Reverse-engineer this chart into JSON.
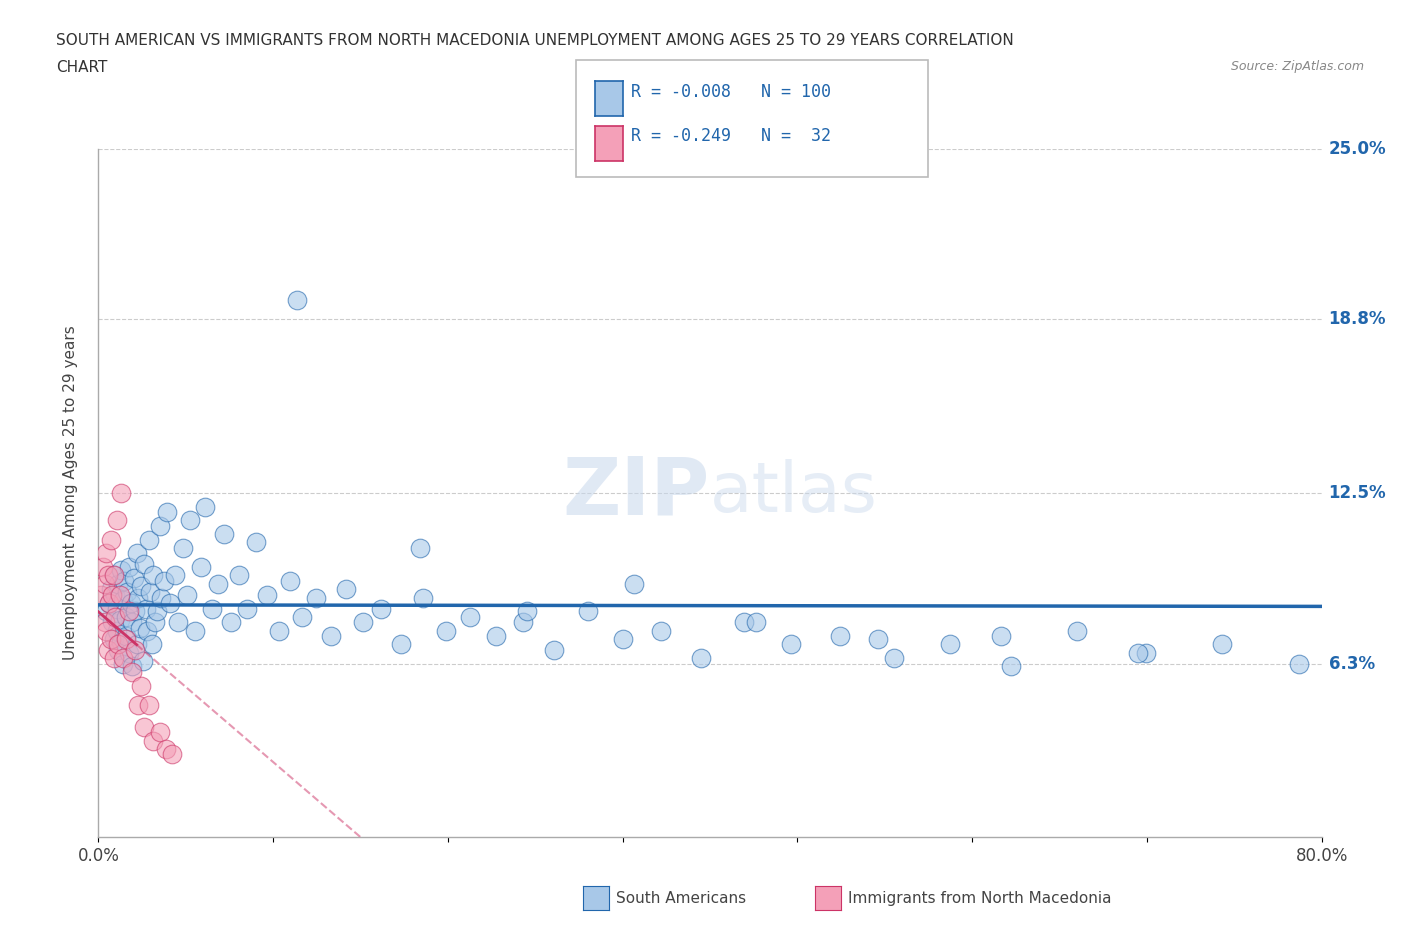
{
  "title_line1": "SOUTH AMERICAN VS IMMIGRANTS FROM NORTH MACEDONIA UNEMPLOYMENT AMONG AGES 25 TO 29 YEARS CORRELATION",
  "title_line2": "CHART",
  "source_text": "Source: ZipAtlas.com",
  "ylabel": "Unemployment Among Ages 25 to 29 years",
  "r_blue": -0.008,
  "n_blue": 100,
  "r_pink": -0.249,
  "n_pink": 32,
  "xlim": [
    0.0,
    0.8
  ],
  "ylim": [
    0.0,
    0.25
  ],
  "yticks": [
    0.063,
    0.125,
    0.188,
    0.25
  ],
  "ytick_labels": [
    "6.3%",
    "12.5%",
    "18.8%",
    "25.0%"
  ],
  "xticks": [
    0.0,
    0.1143,
    0.2286,
    0.3429,
    0.4571,
    0.5714,
    0.6857,
    0.8
  ],
  "xtick_labels": [
    "0.0%",
    "",
    "",
    "",
    "",
    "",
    "",
    "80.0%"
  ],
  "color_blue": "#a8c8e8",
  "color_pink": "#f4a0b8",
  "line_blue": "#2166ac",
  "line_pink": "#cc3366",
  "legend_label_blue": "South Americans",
  "legend_label_pink": "Immigrants from North Macedonia",
  "watermark_zip": "ZIP",
  "watermark_atlas": "atlas",
  "blue_x": [
    0.005,
    0.007,
    0.008,
    0.009,
    0.01,
    0.01,
    0.011,
    0.012,
    0.012,
    0.013,
    0.013,
    0.014,
    0.015,
    0.015,
    0.016,
    0.016,
    0.017,
    0.018,
    0.018,
    0.019,
    0.02,
    0.02,
    0.021,
    0.022,
    0.022,
    0.023,
    0.024,
    0.025,
    0.025,
    0.026,
    0.027,
    0.028,
    0.029,
    0.03,
    0.031,
    0.032,
    0.033,
    0.034,
    0.035,
    0.036,
    0.037,
    0.038,
    0.04,
    0.041,
    0.043,
    0.045,
    0.047,
    0.05,
    0.052,
    0.055,
    0.058,
    0.06,
    0.063,
    0.067,
    0.07,
    0.074,
    0.078,
    0.082,
    0.087,
    0.092,
    0.097,
    0.103,
    0.11,
    0.118,
    0.125,
    0.133,
    0.142,
    0.152,
    0.162,
    0.173,
    0.185,
    0.198,
    0.212,
    0.227,
    0.243,
    0.26,
    0.278,
    0.298,
    0.32,
    0.343,
    0.368,
    0.394,
    0.422,
    0.453,
    0.485,
    0.52,
    0.557,
    0.597,
    0.64,
    0.685,
    0.735,
    0.785,
    0.13,
    0.21,
    0.28,
    0.35,
    0.43,
    0.51,
    0.59,
    0.68
  ],
  "blue_y": [
    0.082,
    0.085,
    0.09,
    0.078,
    0.095,
    0.072,
    0.088,
    0.083,
    0.075,
    0.092,
    0.068,
    0.079,
    0.097,
    0.071,
    0.086,
    0.063,
    0.093,
    0.08,
    0.073,
    0.089,
    0.098,
    0.067,
    0.085,
    0.078,
    0.062,
    0.094,
    0.082,
    0.07,
    0.103,
    0.087,
    0.076,
    0.091,
    0.064,
    0.099,
    0.083,
    0.075,
    0.108,
    0.089,
    0.07,
    0.095,
    0.078,
    0.082,
    0.113,
    0.087,
    0.093,
    0.118,
    0.085,
    0.095,
    0.078,
    0.105,
    0.088,
    0.115,
    0.075,
    0.098,
    0.12,
    0.083,
    0.092,
    0.11,
    0.078,
    0.095,
    0.083,
    0.107,
    0.088,
    0.075,
    0.093,
    0.08,
    0.087,
    0.073,
    0.09,
    0.078,
    0.083,
    0.07,
    0.087,
    0.075,
    0.08,
    0.073,
    0.078,
    0.068,
    0.082,
    0.072,
    0.075,
    0.065,
    0.078,
    0.07,
    0.073,
    0.065,
    0.07,
    0.062,
    0.075,
    0.067,
    0.07,
    0.063,
    0.195,
    0.105,
    0.082,
    0.092,
    0.078,
    0.072,
    0.073,
    0.067
  ],
  "pink_x": [
    0.002,
    0.003,
    0.004,
    0.004,
    0.005,
    0.005,
    0.006,
    0.006,
    0.007,
    0.008,
    0.008,
    0.009,
    0.01,
    0.01,
    0.011,
    0.012,
    0.013,
    0.014,
    0.015,
    0.016,
    0.018,
    0.02,
    0.022,
    0.024,
    0.026,
    0.028,
    0.03,
    0.033,
    0.036,
    0.04,
    0.044,
    0.048
  ],
  "pink_y": [
    0.088,
    0.098,
    0.092,
    0.078,
    0.103,
    0.075,
    0.095,
    0.068,
    0.085,
    0.108,
    0.072,
    0.088,
    0.095,
    0.065,
    0.08,
    0.115,
    0.07,
    0.088,
    0.125,
    0.065,
    0.072,
    0.082,
    0.06,
    0.068,
    0.048,
    0.055,
    0.04,
    0.048,
    0.035,
    0.038,
    0.032,
    0.03
  ]
}
